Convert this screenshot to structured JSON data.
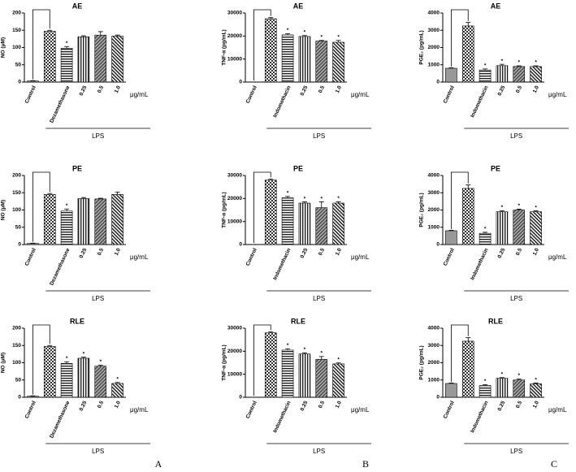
{
  "panels": [
    "A",
    "B",
    "C"
  ],
  "chart_data": [
    {
      "type": "bar",
      "title": "AE",
      "y_label": "NO (μM)",
      "categories": [
        "Control",
        null,
        "Dezamethasone",
        "0.25",
        "0.5",
        "1.0"
      ],
      "values": [
        3,
        147,
        98,
        131,
        136,
        133
      ],
      "errors": [
        1,
        3,
        5,
        3,
        10,
        3
      ],
      "significance": [
        null,
        null,
        "*",
        null,
        null,
        null
      ],
      "ylim": [
        0,
        200
      ],
      "yticks": [
        0,
        50,
        100,
        150,
        200
      ],
      "unit": "μg/mL",
      "group_label": "LPS"
    },
    {
      "type": "bar",
      "title": "AE",
      "y_label": "TNF-α (pg/mL)",
      "categories": [
        "Control",
        null,
        "Indomethacin",
        "0.25",
        "0.5",
        "1.0"
      ],
      "values": [
        0,
        27500,
        20500,
        19800,
        17800,
        17300
      ],
      "errors": [
        0,
        500,
        500,
        400,
        300,
        800
      ],
      "significance": [
        null,
        null,
        "*",
        "*",
        "*",
        "*"
      ],
      "ylim": [
        0,
        30000
      ],
      "yticks": [
        0,
        10000,
        20000,
        30000
      ],
      "unit": "μg/mL",
      "group_label": "LPS"
    },
    {
      "type": "bar",
      "title": "AE",
      "y_label": "PGE₂ (pg/mL)",
      "categories": [
        "Control",
        null,
        "Indomethacin",
        "0.25",
        "0.5",
        "1.0"
      ],
      "values": [
        800,
        3250,
        700,
        950,
        900,
        900
      ],
      "errors": [
        30,
        200,
        60,
        80,
        40,
        40
      ],
      "significance": [
        null,
        null,
        "*",
        "*",
        "*",
        "*"
      ],
      "ylim": [
        0,
        4000
      ],
      "yticks": [
        0,
        1000,
        2000,
        3000,
        4000
      ],
      "unit": "μg/mL",
      "group_label": "LPS"
    },
    {
      "type": "bar",
      "title": "PE",
      "y_label": "NO (μM)",
      "categories": [
        "Control",
        null,
        "Dezamethasone",
        "0.25",
        "0.5",
        "1.0"
      ],
      "values": [
        3,
        145,
        97,
        133,
        132,
        145
      ],
      "errors": [
        1,
        3,
        6,
        3,
        2,
        7
      ],
      "significance": [
        null,
        null,
        "*",
        null,
        null,
        null
      ],
      "ylim": [
        0,
        200
      ],
      "yticks": [
        0,
        50,
        100,
        150,
        200
      ],
      "unit": "μg/mL",
      "group_label": "LPS"
    },
    {
      "type": "bar",
      "title": "PE",
      "y_label": "TNF-α (pg/mL)",
      "categories": [
        "Control",
        null,
        "Indomethacin",
        "0.25",
        "0.5",
        "1.0"
      ],
      "values": [
        0,
        28000,
        20300,
        18000,
        16000,
        18000
      ],
      "errors": [
        0,
        500,
        600,
        500,
        2500,
        600
      ],
      "significance": [
        null,
        null,
        "*",
        "*",
        "*",
        "*"
      ],
      "ylim": [
        0,
        30000
      ],
      "yticks": [
        0,
        10000,
        20000,
        30000
      ],
      "unit": "μg/mL",
      "group_label": "LPS"
    },
    {
      "type": "bar",
      "title": "PE",
      "y_label": "PGE₂ (pg/mL)",
      "categories": [
        "Control",
        null,
        "Indomethacin",
        "0.25",
        "0.5",
        "1.0"
      ],
      "values": [
        800,
        3250,
        650,
        1900,
        2000,
        1900
      ],
      "errors": [
        30,
        200,
        60,
        60,
        50,
        50
      ],
      "significance": [
        null,
        null,
        "*",
        "*",
        "*",
        "*"
      ],
      "ylim": [
        0,
        4000
      ],
      "yticks": [
        0,
        1000,
        2000,
        3000,
        4000
      ],
      "unit": "μg/mL",
      "group_label": "LPS"
    },
    {
      "type": "bar",
      "title": "RLE",
      "y_label": "NO (μM)",
      "categories": [
        "Control",
        null,
        "Dezamethasone",
        "0.25",
        "0.5",
        "1.0"
      ],
      "values": [
        3,
        147,
        98,
        113,
        90,
        40
      ],
      "errors": [
        1,
        3,
        5,
        3,
        3,
        3
      ],
      "significance": [
        null,
        null,
        "*",
        "*",
        "*",
        "*"
      ],
      "ylim": [
        0,
        200
      ],
      "yticks": [
        0,
        50,
        100,
        150,
        200
      ],
      "unit": "μg/mL",
      "group_label": "LPS"
    },
    {
      "type": "bar",
      "title": "RLE",
      "y_label": "TNF-α (pg/mL)",
      "categories": [
        "Control",
        null,
        "Indomethacin",
        "0.25",
        "0.5",
        "1.0"
      ],
      "values": [
        0,
        28000,
        20500,
        18800,
        16500,
        14500
      ],
      "errors": [
        0,
        500,
        600,
        500,
        1200,
        400
      ],
      "significance": [
        null,
        null,
        "*",
        "*",
        "*",
        "*"
      ],
      "ylim": [
        0,
        30000
      ],
      "yticks": [
        0,
        10000,
        20000,
        30000
      ],
      "unit": "μg/mL",
      "group_label": "LPS"
    },
    {
      "type": "bar",
      "title": "RLE",
      "y_label": "PGE₂ (pg/mL)",
      "categories": [
        "Control",
        null,
        "Indomethacin",
        "0.25",
        "0.5",
        "1.0"
      ],
      "values": [
        800,
        3250,
        680,
        1100,
        1000,
        780
      ],
      "errors": [
        30,
        200,
        50,
        40,
        60,
        40
      ],
      "significance": [
        null,
        null,
        "*",
        "*",
        "*",
        "*"
      ],
      "ylim": [
        0,
        4000
      ],
      "yticks": [
        0,
        1000,
        2000,
        3000,
        4000
      ],
      "unit": "μg/mL",
      "group_label": "LPS"
    }
  ]
}
